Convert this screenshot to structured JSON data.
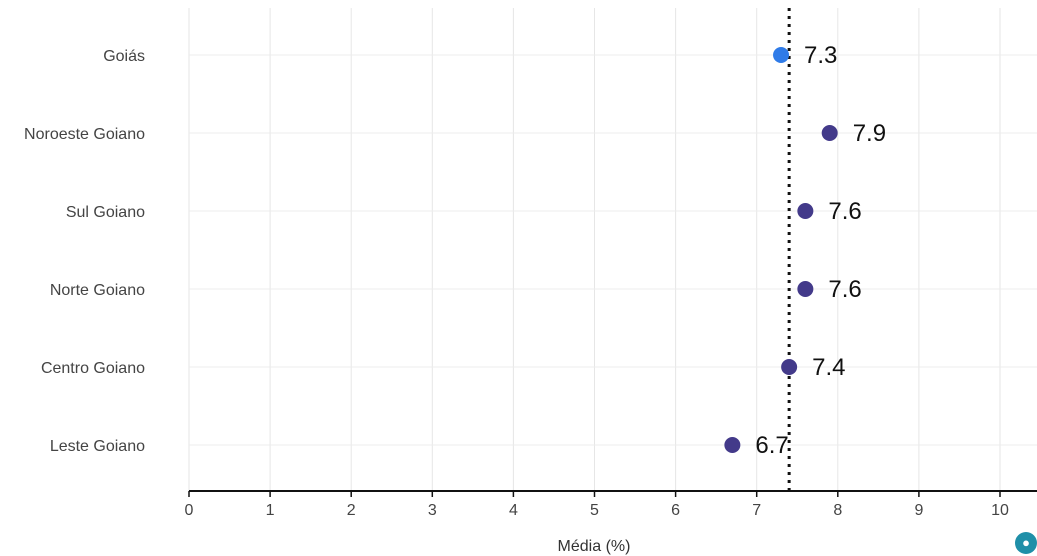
{
  "chart_data": {
    "type": "scatter",
    "categories": [
      "Goiás",
      "Noroeste Goiano",
      "Sul Goiano",
      "Norte Goiano",
      "Centro Goiano",
      "Leste Goiano"
    ],
    "values": [
      7.3,
      7.9,
      7.6,
      7.6,
      7.4,
      6.7
    ],
    "value_labels": [
      "7.3",
      "7.9",
      "7.6",
      "7.6",
      "7.4",
      "6.7"
    ],
    "point_colors": [
      "#2f7be8",
      "#433a8a",
      "#433a8a",
      "#433a8a",
      "#433a8a",
      "#433a8a"
    ],
    "reference_line": 7.4,
    "xlabel": "Média (%)",
    "xlim": [
      0,
      10.5
    ],
    "xticks": [
      0,
      1,
      2,
      3,
      4,
      5,
      6,
      7,
      8,
      9,
      10
    ],
    "grid": true
  },
  "logo": {
    "icon": "brand-logo-icon",
    "color": "#1f8fa8"
  }
}
